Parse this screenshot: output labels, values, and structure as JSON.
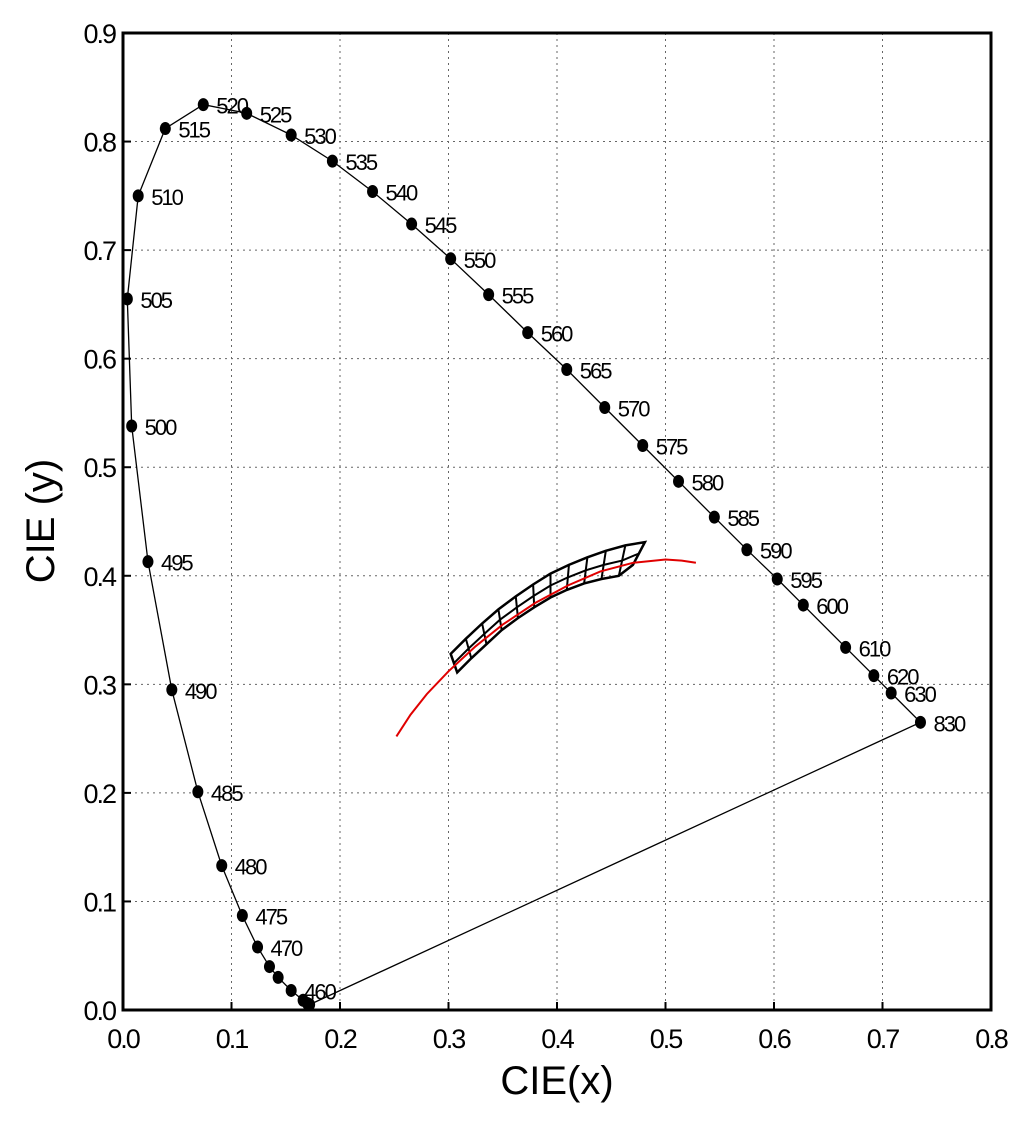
{
  "chart_data": {
    "type": "scatter",
    "title": "",
    "xlabel": "CIE(x)",
    "ylabel": "CIE (y)",
    "xlim": [
      0.0,
      0.8
    ],
    "ylim": [
      0.0,
      0.9
    ],
    "x_ticks": [
      "0.0",
      "0.1",
      "0.2",
      "0.3",
      "0.4",
      "0.5",
      "0.6",
      "0.7",
      "0.8"
    ],
    "y_ticks": [
      "0.0",
      "0.1",
      "0.2",
      "0.3",
      "0.4",
      "0.5",
      "0.6",
      "0.7",
      "0.8",
      "0.9"
    ],
    "grid": true,
    "spectral_locus": [
      {
        "label": "",
        "x": 0.172,
        "y": 0.005
      },
      {
        "label": "",
        "x": 0.17,
        "y": 0.006
      },
      {
        "label": "",
        "x": 0.166,
        "y": 0.009
      },
      {
        "label": "460",
        "x": 0.155,
        "y": 0.018
      },
      {
        "label": "",
        "x": 0.143,
        "y": 0.03
      },
      {
        "label": "",
        "x": 0.135,
        "y": 0.04
      },
      {
        "label": "470",
        "x": 0.124,
        "y": 0.058
      },
      {
        "label": "475",
        "x": 0.11,
        "y": 0.087
      },
      {
        "label": "480",
        "x": 0.091,
        "y": 0.133
      },
      {
        "label": "485",
        "x": 0.069,
        "y": 0.201
      },
      {
        "label": "490",
        "x": 0.045,
        "y": 0.295
      },
      {
        "label": "495",
        "x": 0.023,
        "y": 0.413
      },
      {
        "label": "500",
        "x": 0.008,
        "y": 0.538
      },
      {
        "label": "505",
        "x": 0.004,
        "y": 0.655
      },
      {
        "label": "510",
        "x": 0.014,
        "y": 0.75
      },
      {
        "label": "515",
        "x": 0.039,
        "y": 0.812
      },
      {
        "label": "520",
        "x": 0.074,
        "y": 0.834
      },
      {
        "label": "525",
        "x": 0.114,
        "y": 0.826
      },
      {
        "label": "530",
        "x": 0.155,
        "y": 0.806
      },
      {
        "label": "535",
        "x": 0.193,
        "y": 0.782
      },
      {
        "label": "540",
        "x": 0.23,
        "y": 0.754
      },
      {
        "label": "545",
        "x": 0.266,
        "y": 0.724
      },
      {
        "label": "550",
        "x": 0.302,
        "y": 0.692
      },
      {
        "label": "555",
        "x": 0.337,
        "y": 0.659
      },
      {
        "label": "560",
        "x": 0.373,
        "y": 0.624
      },
      {
        "label": "565",
        "x": 0.409,
        "y": 0.59
      },
      {
        "label": "570",
        "x": 0.444,
        "y": 0.555
      },
      {
        "label": "575",
        "x": 0.479,
        "y": 0.52
      },
      {
        "label": "580",
        "x": 0.512,
        "y": 0.487
      },
      {
        "label": "585",
        "x": 0.545,
        "y": 0.454
      },
      {
        "label": "590",
        "x": 0.575,
        "y": 0.424
      },
      {
        "label": "595",
        "x": 0.603,
        "y": 0.397
      },
      {
        "label": "600",
        "x": 0.627,
        "y": 0.373
      },
      {
        "label": "610",
        "x": 0.666,
        "y": 0.334
      },
      {
        "label": "620",
        "x": 0.692,
        "y": 0.308
      },
      {
        "label": "630",
        "x": 0.708,
        "y": 0.292
      },
      {
        "label": "830",
        "x": 0.735,
        "y": 0.265
      }
    ],
    "planckian_locus": [
      {
        "x": 0.252,
        "y": 0.252
      },
      {
        "x": 0.265,
        "y": 0.272
      },
      {
        "x": 0.28,
        "y": 0.291
      },
      {
        "x": 0.3,
        "y": 0.312
      },
      {
        "x": 0.325,
        "y": 0.335
      },
      {
        "x": 0.35,
        "y": 0.355
      },
      {
        "x": 0.38,
        "y": 0.375
      },
      {
        "x": 0.41,
        "y": 0.391
      },
      {
        "x": 0.44,
        "y": 0.404
      },
      {
        "x": 0.47,
        "y": 0.412
      },
      {
        "x": 0.5,
        "y": 0.415
      },
      {
        "x": 0.515,
        "y": 0.414
      },
      {
        "x": 0.528,
        "y": 0.412
      }
    ],
    "planckian_color": "#e00000",
    "quadrangles": {
      "upper_edge": [
        {
          "x": 0.302,
          "y": 0.328
        },
        {
          "x": 0.316,
          "y": 0.342
        },
        {
          "x": 0.331,
          "y": 0.356
        },
        {
          "x": 0.346,
          "y": 0.369
        },
        {
          "x": 0.362,
          "y": 0.381
        },
        {
          "x": 0.378,
          "y": 0.392
        },
        {
          "x": 0.394,
          "y": 0.402
        },
        {
          "x": 0.411,
          "y": 0.41
        },
        {
          "x": 0.428,
          "y": 0.417
        },
        {
          "x": 0.445,
          "y": 0.423
        },
        {
          "x": 0.463,
          "y": 0.428
        },
        {
          "x": 0.481,
          "y": 0.431
        }
      ],
      "lower_edge": [
        {
          "x": 0.308,
          "y": 0.311
        },
        {
          "x": 0.321,
          "y": 0.324
        },
        {
          "x": 0.335,
          "y": 0.337
        },
        {
          "x": 0.349,
          "y": 0.35
        },
        {
          "x": 0.364,
          "y": 0.361
        },
        {
          "x": 0.379,
          "y": 0.371
        },
        {
          "x": 0.394,
          "y": 0.38
        },
        {
          "x": 0.409,
          "y": 0.387
        },
        {
          "x": 0.425,
          "y": 0.393
        },
        {
          "x": 0.441,
          "y": 0.397
        },
        {
          "x": 0.457,
          "y": 0.4
        },
        {
          "x": 0.47,
          "y": 0.41
        }
      ]
    }
  }
}
